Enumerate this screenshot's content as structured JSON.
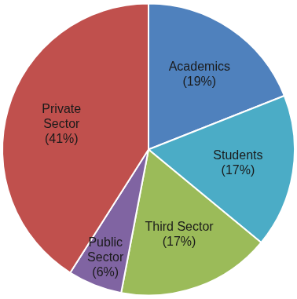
{
  "chart_data": {
    "type": "pie",
    "categories": [
      "Academics",
      "Students",
      "Third Sector",
      "Public Sector",
      "Private Sector"
    ],
    "values": [
      19,
      17,
      17,
      6,
      41
    ],
    "value_labels": [
      "(19%)",
      "(17%)",
      "(17%)",
      "(6%)",
      "(41%)"
    ],
    "colors": [
      "#4f81bd",
      "#4bacc6",
      "#9bbb59",
      "#8064a2",
      "#c0504d"
    ],
    "data_labels": true
  }
}
